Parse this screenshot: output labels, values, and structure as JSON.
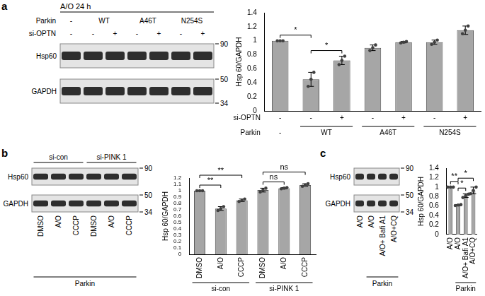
{
  "panel_labels": [
    "a",
    "b",
    "c"
  ],
  "blots": [
    {
      "header": "A/O 24 h",
      "top_rows": [
        {
          "label": "Parkin",
          "groups": [
            {
              "label": "-",
              "start": 0,
              "span": 1
            },
            {
              "label": "WT",
              "start": 1,
              "span": 2
            },
            {
              "label": "A46T",
              "start": 3,
              "span": 2
            },
            {
              "label": "N254S",
              "start": 5,
              "span": 2
            }
          ]
        },
        {
          "label": "si-OPTN",
          "lanes": [
            "-",
            "-",
            "+",
            "-",
            "+",
            "-",
            "+"
          ]
        }
      ],
      "bands": [
        "Hsp60",
        "GAPDH"
      ],
      "markers": [
        90,
        50,
        34
      ]
    },
    {
      "top_rows": [
        {
          "groups": [
            {
              "label": "si-con",
              "start": 0,
              "span": 3
            },
            {
              "label": "si-PINK 1",
              "start": 3,
              "span": 3
            }
          ]
        }
      ],
      "bands": [
        "Hsp60",
        "GAPDH"
      ],
      "markers": [
        90,
        50,
        34
      ],
      "lanes": [
        "DMSO",
        "A/O",
        "CCCP",
        "DMSO",
        "A/O",
        "CCCP"
      ],
      "bottom_groups": [
        {
          "label": "Parkin",
          "start": 0,
          "span": 6
        }
      ]
    },
    {
      "bands": [
        "Hsp60",
        "GAPDH"
      ],
      "markers": [
        90,
        50,
        34
      ],
      "lanes": [
        "A/O",
        "A/O",
        "A/O+ Bafi A1",
        "A/O+CQ"
      ],
      "bottom_groups": [
        {
          "label": "Parkin",
          "start": 1,
          "span": 3
        }
      ]
    }
  ],
  "chart_data": [
    {
      "type": "bar",
      "y_label": "Hsp 60/GAPDH",
      "categories": [
        "-",
        "-",
        "+",
        "-",
        "+",
        "-",
        "+"
      ],
      "category_label": "si-OPTN",
      "groups": [
        {
          "label": "-",
          "start": 0,
          "span": 1
        },
        {
          "label": "WT",
          "start": 1,
          "span": 2
        },
        {
          "label": "A46T",
          "start": 3,
          "span": 2
        },
        {
          "label": "N254S",
          "start": 5,
          "span": 2
        }
      ],
      "groups_label": "Parkin",
      "values": [
        1,
        0.45,
        0.72,
        0.9,
        0.98,
        0.98,
        1.15
      ],
      "errors": [
        0,
        0.1,
        0.06,
        0.04,
        0.01,
        0.03,
        0.06
      ],
      "points": [
        [
          1,
          1,
          1
        ],
        [
          0.35,
          0.45,
          0.55
        ],
        [
          0.66,
          0.72,
          0.78
        ],
        [
          0.86,
          0.9,
          0.94
        ],
        [
          0.97,
          0.98,
          0.99
        ],
        [
          0.95,
          0.98,
          1.01
        ],
        [
          1.1,
          1.15,
          1.21
        ]
      ],
      "significance": [
        {
          "from": 0,
          "to": 1,
          "label": "*"
        },
        {
          "from": 1,
          "to": 2,
          "label": "*"
        }
      ],
      "color": "#a6a6a6",
      "ylim": [
        0,
        1.4
      ],
      "yticks": [
        0,
        0.2,
        0.4,
        0.6,
        0.8,
        1,
        1.2,
        1.4
      ],
      "grid": false
    },
    {
      "type": "bar",
      "y_label": "Hsp 60/GAPDH",
      "categories": [
        "DMSO",
        "A/O",
        "CCCP",
        "DMSO",
        "A/O",
        "CCCP"
      ],
      "groups": [
        {
          "label": "si-con",
          "start": 0,
          "span": 3
        },
        {
          "label": "si-PINK 1",
          "start": 3,
          "span": 3
        }
      ],
      "values": [
        1,
        0.72,
        0.85,
        1.01,
        1.04,
        1.09
      ],
      "errors": [
        0,
        0.03,
        0.02,
        0.03,
        0.01,
        0.02
      ],
      "points": [
        [
          1,
          1,
          1
        ],
        [
          0.69,
          0.72,
          0.75
        ],
        [
          0.83,
          0.85,
          0.87
        ],
        [
          0.98,
          1.01,
          1.04
        ],
        [
          1.03,
          1.04,
          1.05
        ],
        [
          1.07,
          1.09,
          1.11
        ]
      ],
      "significance": [
        {
          "from": 0,
          "to": 1,
          "label": "**"
        },
        {
          "from": 0,
          "to": 2,
          "label": "**"
        },
        {
          "from": 3,
          "to": 4,
          "label": "ns"
        },
        {
          "from": 3,
          "to": 5,
          "label": "ns"
        }
      ],
      "color": "#a6a6a6",
      "ylim": [
        0,
        1.2
      ],
      "yticks": [
        0,
        0.1,
        0.2,
        0.3,
        0.4,
        0.5,
        0.6,
        0.7,
        0.8,
        0.9,
        1,
        1.1,
        1.2
      ],
      "grid": false
    },
    {
      "type": "bar",
      "y_label": "Hsp 60/GAPDH",
      "categories": [
        "A/O",
        "A/O",
        "A/O+ Bafi A1",
        "A/O+CQ"
      ],
      "groups": [
        {
          "label": "Parkin",
          "start": 1,
          "span": 3
        }
      ],
      "values": [
        1,
        0.62,
        0.82,
        0.93
      ],
      "errors": [
        0,
        0.01,
        0.04,
        0.07
      ],
      "points": [
        [
          1,
          1,
          1
        ],
        [
          0.61,
          0.62,
          0.63
        ],
        [
          0.78,
          0.82,
          0.85
        ],
        [
          0.86,
          0.93,
          1.0
        ]
      ],
      "significance": [
        {
          "from": 0,
          "to": 1,
          "label": "**"
        },
        {
          "from": 1,
          "to": 2,
          "label": "*"
        },
        {
          "from": 1,
          "to": 3,
          "label": "*"
        }
      ],
      "color": "#a6a6a6",
      "ylim": [
        0,
        1.4
      ],
      "yticks": [
        0,
        0.2,
        0.4,
        0.6,
        0.8,
        1,
        1.2,
        1.4
      ],
      "grid": false
    }
  ]
}
